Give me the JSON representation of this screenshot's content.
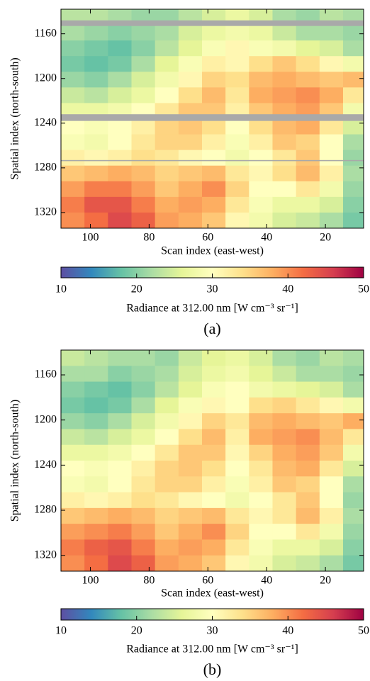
{
  "chart_data": [
    {
      "type": "heatmap",
      "caption": "(a)",
      "xlabel": "Scan index (east-west)",
      "ylabel": "Spatial index (north-south)",
      "xlim": [
        110,
        7
      ],
      "ylim": [
        1334,
        1138
      ],
      "xticks": [
        100,
        80,
        60,
        40,
        20
      ],
      "yticks": [
        1160,
        1200,
        1240,
        1280,
        1320
      ],
      "x_bins": [
        110,
        102,
        94,
        86,
        78,
        70,
        62,
        54,
        46,
        38,
        30,
        22,
        14,
        7
      ],
      "y_bins": [
        1138,
        1152,
        1166,
        1180,
        1194,
        1208,
        1222,
        1236,
        1250,
        1264,
        1278,
        1292,
        1306,
        1320,
        1334
      ],
      "z": [
        [
          23,
          23,
          22,
          21,
          21,
          23,
          25,
          27,
          25,
          22,
          21,
          23,
          22
        ],
        [
          22,
          21,
          20,
          21,
          22,
          25,
          27,
          28,
          27,
          24,
          22,
          22,
          21
        ],
        [
          20,
          19,
          18,
          20,
          23,
          26,
          29,
          31,
          29,
          28,
          26,
          25,
          22
        ],
        [
          19,
          18,
          19,
          22,
          26,
          29,
          32,
          31,
          34,
          36,
          34,
          31,
          28
        ],
        [
          21,
          20,
          22,
          25,
          28,
          31,
          35,
          34,
          37,
          38,
          37,
          36,
          37
        ],
        [
          24,
          23,
          25,
          27,
          30,
          34,
          37,
          33,
          38,
          39,
          40,
          38,
          33
        ],
        [
          27,
          27,
          28,
          30,
          33,
          36,
          36,
          32,
          36,
          38,
          39,
          36,
          28
        ],
        [
          30,
          29,
          30,
          32,
          35,
          36,
          34,
          30,
          34,
          37,
          38,
          33,
          25
        ],
        [
          29,
          28,
          30,
          33,
          35,
          35,
          32,
          29,
          32,
          36,
          35,
          30,
          22
        ],
        [
          32,
          31,
          32,
          34,
          33,
          31,
          30,
          28,
          30,
          33,
          36,
          30,
          21
        ],
        [
          36,
          37,
          38,
          37,
          35,
          36,
          37,
          33,
          31,
          34,
          37,
          32,
          22
        ],
        [
          39,
          41,
          41,
          39,
          36,
          38,
          40,
          35,
          30,
          30,
          33,
          28,
          21
        ],
        [
          41,
          44,
          44,
          41,
          38,
          39,
          38,
          33,
          29,
          27,
          27,
          25,
          20
        ],
        [
          40,
          42,
          45,
          43,
          39,
          38,
          36,
          31,
          28,
          25,
          24,
          22,
          19
        ]
      ],
      "nodata_rows": [
        [
          1148,
          1153
        ],
        [
          1232,
          1238
        ],
        [
          1273,
          1274
        ]
      ],
      "nodata_color": "#a9a9a9",
      "colormap": [
        "#5e4fa2",
        "#3288bd",
        "#66c2a5",
        "#abdda4",
        "#e6f598",
        "#ffffbf",
        "#fee08b",
        "#fdae61",
        "#f46d43",
        "#d53e4f",
        "#9e0142"
      ],
      "colorbar": {
        "label": "Radiance at 312.00 nm [W cm⁻³ sr⁻¹]",
        "lim": [
          10,
          50
        ],
        "ticks": [
          10,
          20,
          30,
          40,
          50
        ]
      }
    },
    {
      "type": "heatmap",
      "caption": "(b)",
      "xlabel": "Scan index (east-west)",
      "ylabel": "Spatial index (north-south)",
      "xlim": [
        110,
        7
      ],
      "ylim": [
        1334,
        1138
      ],
      "xticks": [
        100,
        80,
        60,
        40,
        20
      ],
      "yticks": [
        1160,
        1200,
        1240,
        1280,
        1320
      ],
      "x_bins": [
        110,
        102,
        94,
        86,
        78,
        70,
        62,
        54,
        46,
        38,
        30,
        22,
        14,
        7
      ],
      "y_bins": [
        1138,
        1152,
        1166,
        1180,
        1194,
        1208,
        1222,
        1236,
        1250,
        1264,
        1278,
        1292,
        1306,
        1320,
        1334
      ],
      "z": [
        [
          24,
          23,
          22,
          22,
          21,
          24,
          26,
          27,
          25,
          22,
          21,
          23,
          22
        ],
        [
          22,
          22,
          20,
          21,
          22,
          25,
          27,
          28,
          26,
          24,
          22,
          22,
          21
        ],
        [
          20,
          19,
          18,
          20,
          23,
          26,
          29,
          30,
          28,
          27,
          26,
          25,
          22
        ],
        [
          19,
          18,
          19,
          22,
          26,
          29,
          31,
          30,
          34,
          35,
          33,
          31,
          28
        ],
        [
          21,
          20,
          22,
          25,
          28,
          31,
          35,
          33,
          37,
          38,
          37,
          36,
          38
        ],
        [
          24,
          23,
          25,
          27,
          30,
          34,
          37,
          32,
          38,
          39,
          40,
          37,
          33
        ],
        [
          27,
          27,
          28,
          30,
          33,
          36,
          36,
          31,
          35,
          38,
          39,
          36,
          28
        ],
        [
          30,
          29,
          30,
          32,
          35,
          36,
          34,
          30,
          33,
          37,
          38,
          33,
          25
        ],
        [
          29,
          28,
          30,
          33,
          35,
          35,
          32,
          29,
          32,
          36,
          35,
          30,
          22
        ],
        [
          32,
          31,
          32,
          34,
          33,
          31,
          30,
          28,
          30,
          33,
          36,
          30,
          21
        ],
        [
          36,
          37,
          38,
          37,
          35,
          36,
          37,
          33,
          31,
          33,
          37,
          32,
          22
        ],
        [
          39,
          40,
          41,
          39,
          36,
          38,
          40,
          35,
          30,
          30,
          33,
          28,
          21
        ],
        [
          41,
          43,
          44,
          41,
          38,
          39,
          38,
          33,
          29,
          27,
          27,
          25,
          20
        ],
        [
          40,
          42,
          45,
          43,
          39,
          38,
          36,
          31,
          28,
          25,
          24,
          22,
          19
        ]
      ],
      "colormap": [
        "#5e4fa2",
        "#3288bd",
        "#66c2a5",
        "#abdda4",
        "#e6f598",
        "#ffffbf",
        "#fee08b",
        "#fdae61",
        "#f46d43",
        "#d53e4f",
        "#9e0142"
      ],
      "colorbar": {
        "label": "Radiance at 312.00 nm [W cm⁻³ sr⁻¹]",
        "lim": [
          10,
          50
        ],
        "ticks": [
          10,
          20,
          30,
          40,
          50
        ]
      }
    }
  ]
}
